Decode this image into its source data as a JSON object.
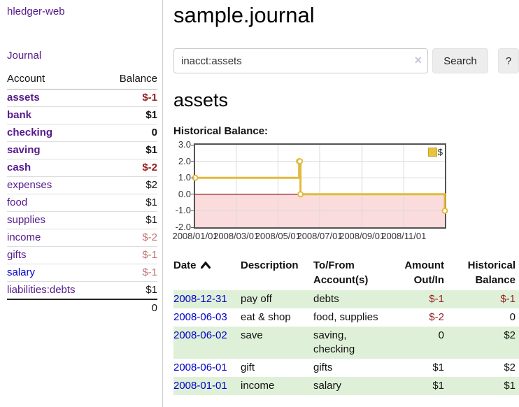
{
  "app": {
    "title": "hledger-web"
  },
  "colors": {
    "link_purple": "#551a8b",
    "link_blue": "#0000cc",
    "negative_strong": "#941f1f",
    "negative_soft": "#c17474",
    "row_stripe_green": "#dff0d8",
    "chart_line_gold": "#e2ba3c",
    "chart_negative_region": "#fbdcdc",
    "chart_zero_line": "#8b0000"
  },
  "sidebar": {
    "journal_link": "Journal",
    "accounts_header": {
      "account": "Account",
      "balance": "Balance"
    },
    "accounts": [
      {
        "name": "assets",
        "balance": "$-1"
      },
      {
        "name": "bank",
        "balance": "$1"
      },
      {
        "name": "checking",
        "balance": "0"
      },
      {
        "name": "saving",
        "balance": "$1"
      },
      {
        "name": "cash",
        "balance": "$-2"
      },
      {
        "name": "expenses",
        "balance": "$2"
      },
      {
        "name": "food",
        "balance": "$1"
      },
      {
        "name": "supplies",
        "balance": "$1"
      },
      {
        "name": "income",
        "balance": "$-2"
      },
      {
        "name": "gifts",
        "balance": "$-1"
      },
      {
        "name": "salary",
        "balance": "$-1"
      },
      {
        "name": "liabilities:debts",
        "balance": "$1"
      }
    ],
    "total": "0"
  },
  "main": {
    "title": "sample.journal",
    "search": {
      "value": "inacct:assets",
      "clear_icon": "×",
      "search_button": "Search",
      "help_button": "?"
    },
    "account_heading": "assets",
    "chart_label": "Historical Balance:"
  },
  "chart_data": {
    "type": "line",
    "step": true,
    "title": "Historical Balance",
    "ylim": [
      -2,
      3
    ],
    "yticks": [
      "3.0",
      "2.0",
      "1.0",
      "0.0",
      "-1.0",
      "-2.0"
    ],
    "xticks": [
      "2008/01/01",
      "2008/03/01",
      "2008/05/01",
      "2008/07/01",
      "2008/09/01",
      "2008/11/01"
    ],
    "grid": true,
    "legend_position": "top-right",
    "series": [
      {
        "name": "$",
        "color": "#e2ba3c",
        "points": [
          {
            "x": "2008-01-01",
            "y": 1
          },
          {
            "x": "2008-06-01",
            "y": 2
          },
          {
            "x": "2008-06-02",
            "y": 2
          },
          {
            "x": "2008-06-03",
            "y": 0
          },
          {
            "x": "2008-12-31",
            "y": -1
          }
        ]
      }
    ],
    "negative_region_fill": "#fbdcdc",
    "zero_line_color": "#8b0000"
  },
  "register": {
    "header": {
      "date": "Date",
      "description": "Description",
      "accounts": "To/From Account(s)",
      "amount": "Amount Out/In",
      "balance": "Historical Balance"
    },
    "rows": [
      {
        "date": "2008-12-31",
        "description": "pay off",
        "accounts": "debts",
        "amount": "$-1",
        "balance": "$-1"
      },
      {
        "date": "2008-06-03",
        "description": "eat & shop",
        "accounts": "food, supplies",
        "amount": "$-2",
        "balance": "0"
      },
      {
        "date": "2008-06-02",
        "description": "save",
        "accounts": "saving, checking",
        "amount": "0",
        "balance": "$2"
      },
      {
        "date": "2008-06-01",
        "description": "gift",
        "accounts": "gifts",
        "amount": "$1",
        "balance": "$2"
      },
      {
        "date": "2008-01-01",
        "description": "income",
        "accounts": "salary",
        "amount": "$1",
        "balance": "$1"
      }
    ]
  }
}
